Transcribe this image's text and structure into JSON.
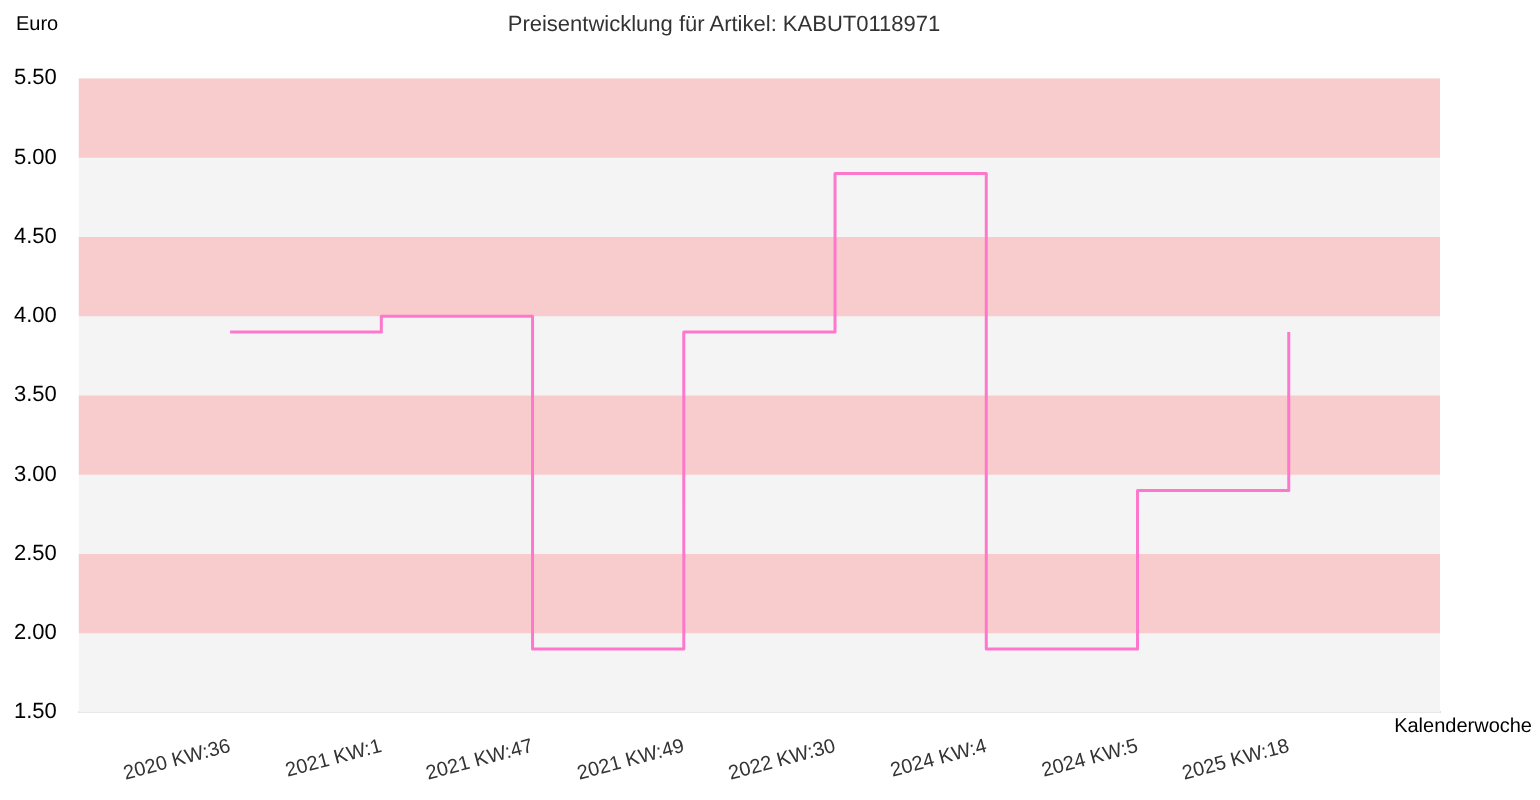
{
  "chart_data": {
    "type": "step",
    "title": "Preisentwicklung für Artikel: KABUT0118971",
    "ylabel": "Euro",
    "xlabel": "Kalenderwoche",
    "categories": [
      "2020 KW:36",
      "2021 KW:1",
      "2021 KW:47",
      "2021 KW:49",
      "2022 KW:30",
      "2024 KW:4",
      "2024 KW:5",
      "2025 KW:18"
    ],
    "series": [
      {
        "color": "#ff77cc",
        "values": [
          3.9,
          4.0,
          1.9,
          3.9,
          4.9,
          1.9,
          2.9,
          3.9
        ]
      }
    ],
    "ylim": [
      1.5,
      5.5
    ],
    "yticks": [
      {
        "value": 1.5,
        "label": "1.50"
      },
      {
        "value": 2,
        "label": "2.00"
      },
      {
        "value": 2.5,
        "label": "2.50"
      },
      {
        "value": 3,
        "label": "3.00"
      },
      {
        "value": 3.5,
        "label": "3.50"
      },
      {
        "value": 4,
        "label": "4.00"
      },
      {
        "value": 4.5,
        "label": "4.50"
      },
      {
        "value": 5,
        "label": "5.00"
      },
      {
        "value": 5.5,
        "label": "5.50"
      }
    ],
    "bands": [
      {
        "axis": "y",
        "from": 2,
        "to": 2.5,
        "color": "#f8cccc"
      },
      {
        "axis": "y",
        "from": 3,
        "to": 3.5,
        "color": "#f8cccc"
      },
      {
        "axis": "y",
        "from": 4,
        "to": 4.5,
        "color": "#f8cccc"
      },
      {
        "axis": "y",
        "from": 5,
        "to": 5.5,
        "color": "#f8cccc"
      }
    ],
    "legend": false
  }
}
